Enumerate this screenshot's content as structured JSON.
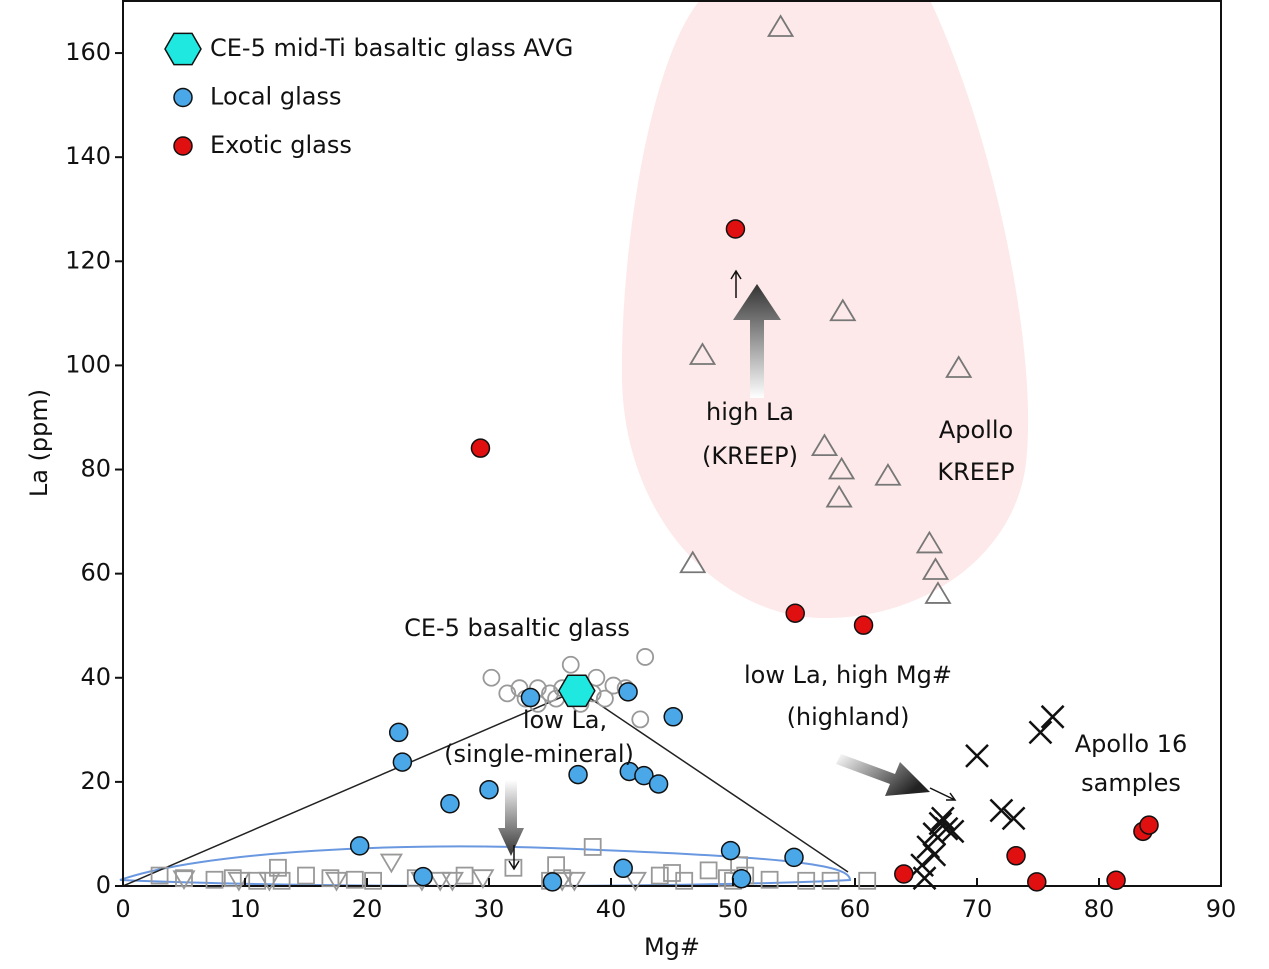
{
  "chart_data": {
    "type": "scatter",
    "x_label": "Mg#",
    "y_label": "La (ppm)",
    "xlim": [
      0,
      90
    ],
    "ylim": [
      0,
      170
    ],
    "xticks": [
      0,
      10,
      20,
      30,
      40,
      50,
      60,
      70,
      80,
      90
    ],
    "yticks": [
      0,
      20,
      40,
      60,
      80,
      100,
      120,
      140,
      160
    ],
    "legend": "top-left",
    "series": [
      {
        "name": "CE-5 mid-Ti basaltic glass AVG",
        "marker": "hexagon",
        "color": "#1ee8e0",
        "x": [
          37.2
        ],
        "values": [
          37.5
        ]
      },
      {
        "name": "Local glass",
        "marker": "circle",
        "color": "#4aa8e8",
        "x": [
          22.6,
          22.9,
          19.4,
          26.8,
          30.0,
          24.6,
          33.4,
          35.2,
          41.4,
          37.3,
          41.5,
          42.7,
          43.9,
          45.1,
          41.0,
          49.8,
          50.7,
          55.0
        ],
        "values": [
          29.5,
          23.8,
          7.7,
          15.8,
          18.5,
          1.8,
          36.2,
          0.8,
          37.3,
          21.4,
          22.0,
          21.2,
          19.6,
          32.5,
          3.4,
          6.8,
          1.4,
          5.5
        ]
      },
      {
        "name": "Exotic glass",
        "marker": "circle",
        "color": "#e01010",
        "x": [
          50.2,
          29.3,
          55.1,
          60.7,
          64.0,
          73.2,
          74.9,
          81.4,
          83.6,
          84.1
        ],
        "values": [
          126.2,
          84.1,
          52.4,
          50.1,
          2.3,
          5.8,
          0.8,
          1.1,
          10.5,
          11.7
        ]
      },
      {
        "marker": "triangle",
        "color": "#777777",
        "x": [
          53.9,
          47.5,
          59.0,
          68.5,
          57.5,
          58.9,
          58.7,
          62.7,
          46.7,
          66.1,
          66.6,
          66.8
        ],
        "values": [
          165.0,
          102.0,
          110.4,
          99.5,
          84.5,
          80.0,
          74.6,
          78.8,
          62.0,
          65.8,
          60.7,
          56.1
        ]
      },
      {
        "marker": "x",
        "color": "#111111",
        "x": [
          70.0,
          72.0,
          73.0,
          75.2,
          76.2,
          66.0,
          65.5,
          66.5,
          67.0,
          67.5,
          68.0,
          66.5,
          65.7,
          67.2
        ],
        "values": [
          25.0,
          14.5,
          13.0,
          29.5,
          32.5,
          7.5,
          4.0,
          10.0,
          12.0,
          11.0,
          10.5,
          6.0,
          1.5,
          13.0
        ]
      },
      {
        "marker": "open-circle",
        "color": "#999999",
        "x": [
          30.2,
          32.5,
          34.0,
          35.0,
          36.0,
          36.7,
          34.0,
          37.5,
          38.8,
          39.5,
          40.2,
          41.2,
          42.4,
          42.8,
          33.0,
          31.5,
          38.5,
          35.5
        ],
        "values": [
          40.0,
          38.0,
          35.0,
          37.0,
          38.0,
          42.5,
          38.0,
          35.0,
          40.0,
          36.0,
          38.5,
          38.0,
          32.0,
          44.0,
          36.0,
          37.0,
          37.0,
          36.0
        ]
      },
      {
        "marker": "square",
        "color": "#999999",
        "x": [
          3.0,
          5.0,
          7.5,
          9.0,
          11.0,
          12.7,
          13.0,
          15.0,
          17.0,
          19.0,
          20.5,
          24.0,
          28.0,
          32.0,
          35.0,
          35.5,
          36.0,
          38.5,
          44.0,
          45.0,
          46.0,
          48.0,
          49.5,
          50.0,
          50.5,
          51.0,
          53.0,
          56.0,
          58.0,
          61.0
        ],
        "values": [
          2.0,
          1.5,
          1.2,
          1.5,
          1.0,
          3.5,
          1.0,
          2.0,
          1.5,
          1.2,
          1.0,
          1.5,
          2.0,
          3.5,
          1.0,
          4.0,
          1.5,
          7.5,
          2.0,
          2.5,
          1.0,
          3.0,
          1.5,
          1.0,
          4.0,
          2.0,
          1.2,
          1.0,
          1.0,
          1.0
        ]
      },
      {
        "marker": "inverted-triangle",
        "color": "#999999",
        "x": [
          5.0,
          9.5,
          12.0,
          17.5,
          22.0,
          24.5,
          26.0,
          27.0,
          29.5,
          36.0,
          37.0,
          42.0
        ],
        "values": [
          1.3,
          1.0,
          1.0,
          1.0,
          4.5,
          1.0,
          1.0,
          1.0,
          1.5,
          1.0,
          1.0,
          1.0
        ]
      }
    ],
    "annotations": [
      "high La",
      "(KREEP)",
      "Apollo",
      "KREEP",
      "CE-5 basaltic glass",
      "low La,",
      "(single-mineral)",
      "low La, high Mg#",
      "(highland)",
      "Apollo 16",
      "samples"
    ]
  }
}
